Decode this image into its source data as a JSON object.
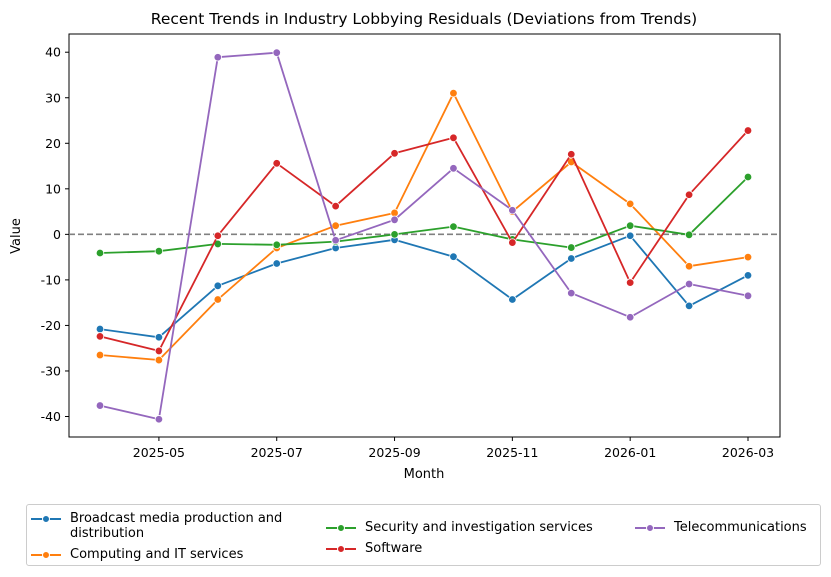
{
  "chart_data": {
    "type": "line",
    "title": "Recent Trends in Industry Lobbying Residuals (Deviations from Trends)",
    "xlabel": "Month",
    "ylabel": "Value",
    "ylim": [
      -44.5,
      44.0
    ],
    "yticks": [
      -40,
      -30,
      -20,
      -10,
      0,
      10,
      20,
      30,
      40
    ],
    "xticks": [
      "2025-05",
      "2025-07",
      "2025-09",
      "2025-11",
      "2026-01",
      "2026-03"
    ],
    "x": [
      "2025-04",
      "2025-05",
      "2025-06",
      "2025-07",
      "2025-08",
      "2025-09",
      "2025-10",
      "2025-11",
      "2025-12",
      "2026-01",
      "2026-02",
      "2026-03"
    ],
    "reference_line": {
      "y": 0,
      "style": "dashed",
      "color": "#808080"
    },
    "grid": false,
    "legend_position": "bottom-center",
    "series": [
      {
        "name": "Broadcast media production and distribution",
        "color": "#1f77b4",
        "values": [
          -20.8,
          -22.6,
          -11.3,
          -6.4,
          -3.0,
          -1.2,
          -4.9,
          -14.3,
          -5.3,
          -0.3,
          -15.7,
          -9.0
        ]
      },
      {
        "name": "Computing and IT services",
        "color": "#ff7f0e",
        "values": [
          -26.5,
          -27.6,
          -14.3,
          -3.0,
          1.9,
          4.7,
          31.0,
          5.0,
          15.9,
          6.7,
          -7.0,
          -5.0
        ]
      },
      {
        "name": "Security and investigation services",
        "color": "#2ca02c",
        "values": [
          -4.1,
          -3.7,
          -2.1,
          -2.3,
          -1.6,
          0.0,
          1.7,
          -1.1,
          -2.9,
          1.9,
          -0.1,
          12.6
        ]
      },
      {
        "name": "Software",
        "color": "#d62728",
        "values": [
          -22.4,
          -25.6,
          -0.3,
          15.6,
          6.2,
          17.8,
          21.2,
          -1.8,
          17.6,
          -10.6,
          8.7,
          22.8
        ]
      },
      {
        "name": "Telecommunications",
        "color": "#9467bd",
        "values": [
          -37.6,
          -40.6,
          38.9,
          39.9,
          -1.3,
          3.2,
          14.5,
          5.3,
          -12.9,
          -18.2,
          -10.9,
          -13.5
        ]
      }
    ]
  }
}
